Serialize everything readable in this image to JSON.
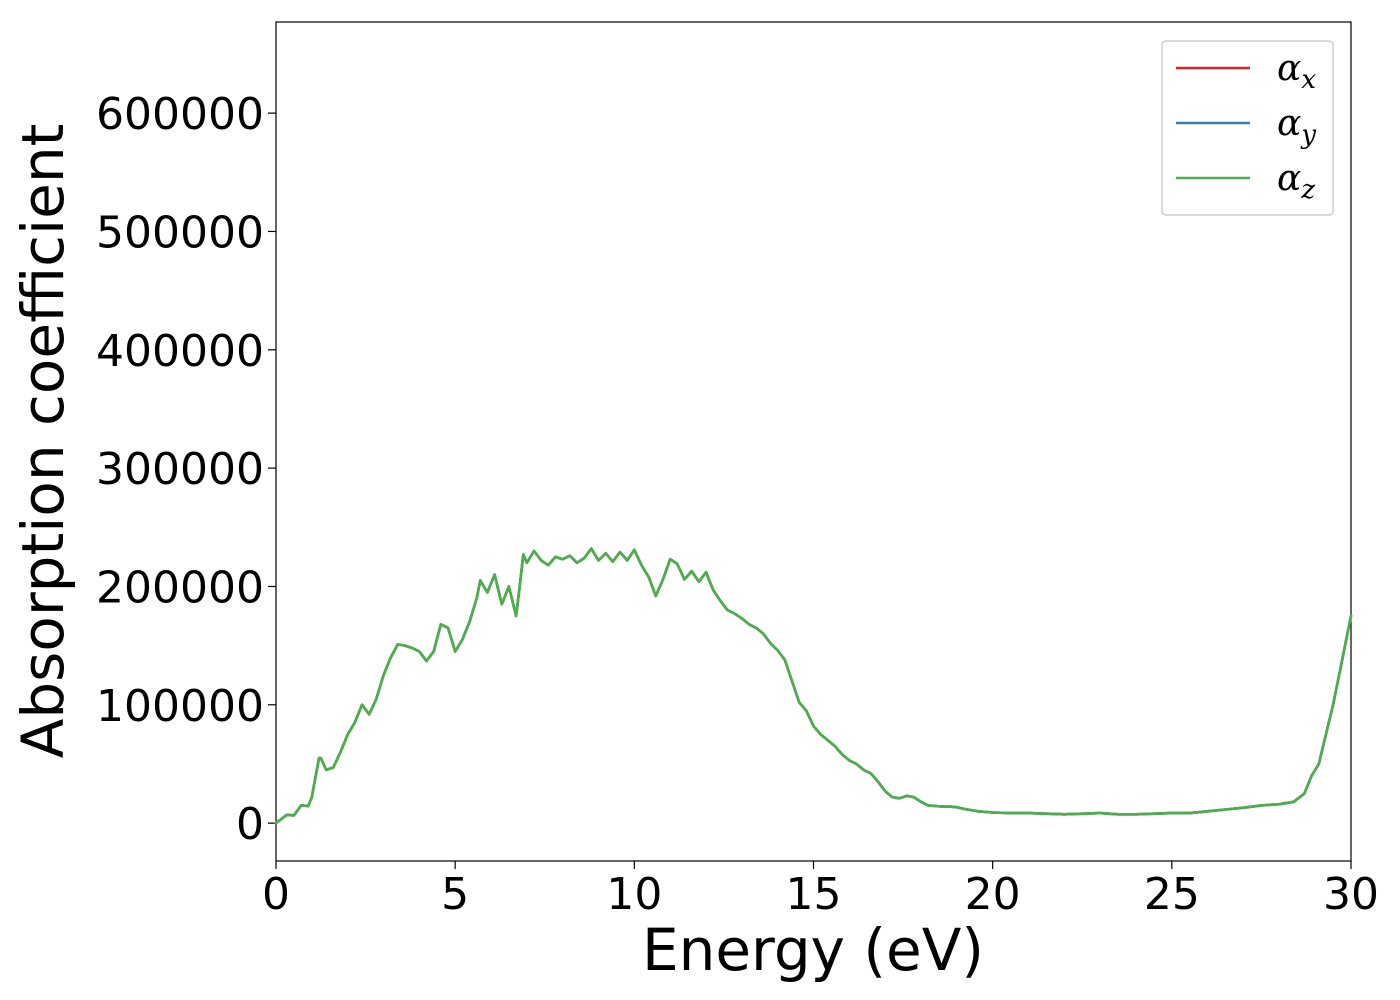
{
  "chart_data": {
    "type": "line",
    "xlabel": "Energy (eV)",
    "ylabel": "Absorption coefficient",
    "xlim": [
      0,
      30
    ],
    "ylim": [
      -32000,
      677000
    ],
    "x_ticks": [
      0,
      5,
      10,
      15,
      20,
      25,
      30
    ],
    "y_ticks": [
      0,
      100000,
      200000,
      300000,
      400000,
      500000,
      600000
    ],
    "x_tick_labels": [
      "0",
      "5",
      "10",
      "15",
      "20",
      "25",
      "30"
    ],
    "y_tick_labels": [
      "0",
      "100000",
      "200000",
      "300000",
      "400000",
      "500000",
      "600000"
    ],
    "grid": false,
    "legend_position": "top-right",
    "x": [
      0,
      0.3,
      0.5,
      0.7,
      0.9,
      1.0,
      1.2,
      1.25,
      1.4,
      1.6,
      1.8,
      2.0,
      2.2,
      2.4,
      2.6,
      2.8,
      3.0,
      3.2,
      3.4,
      3.6,
      3.8,
      4.0,
      4.2,
      4.4,
      4.6,
      4.8,
      5.0,
      5.2,
      5.4,
      5.6,
      5.7,
      5.9,
      6.1,
      6.3,
      6.5,
      6.7,
      6.8,
      6.9,
      7.0,
      7.2,
      7.4,
      7.6,
      7.8,
      8.0,
      8.2,
      8.4,
      8.6,
      8.8,
      9.0,
      9.2,
      9.4,
      9.6,
      9.8,
      10.0,
      10.2,
      10.4,
      10.6,
      10.8,
      11.0,
      11.2,
      11.4,
      11.6,
      11.8,
      12.0,
      12.2,
      12.4,
      12.6,
      12.8,
      13.0,
      13.2,
      13.4,
      13.6,
      13.8,
      14.0,
      14.2,
      14.4,
      14.6,
      14.8,
      15.0,
      15.2,
      15.4,
      15.6,
      15.8,
      16.0,
      16.2,
      16.4,
      16.6,
      16.8,
      17.0,
      17.2,
      17.4,
      17.6,
      17.8,
      18.0,
      18.2,
      18.4,
      18.6,
      18.8,
      19.0,
      19.2,
      19.4,
      19.6,
      19.8,
      20.0,
      20.5,
      21.0,
      21.5,
      22.0,
      22.5,
      23.0,
      23.5,
      24.0,
      24.5,
      25.0,
      25.5,
      26.0,
      26.5,
      27.0,
      27.5,
      28.0,
      28.4,
      28.7,
      28.9,
      29.1,
      29.3,
      29.5,
      29.7,
      29.9,
      30.0
    ],
    "series": [
      {
        "name": "α_x",
        "color": "#d62728",
        "values": [
          0,
          7000,
          6500,
          15000,
          14500,
          22000,
          55000,
          55000,
          45000,
          47000,
          60000,
          75000,
          85000,
          100000,
          92000,
          105000,
          125000,
          140000,
          151000,
          150000,
          148000,
          145000,
          137000,
          145000,
          168000,
          165000,
          145000,
          155000,
          170000,
          190000,
          205000,
          195000,
          210000,
          185000,
          200000,
          175000,
          200000,
          227000,
          220000,
          230000,
          222000,
          218000,
          225000,
          223000,
          226000,
          220000,
          224000,
          232000,
          222000,
          228000,
          221000,
          229000,
          222000,
          231000,
          218000,
          208000,
          192000,
          206000,
          223000,
          219000,
          206000,
          213000,
          204000,
          212000,
          197000,
          188000,
          180000,
          177000,
          173000,
          168000,
          165000,
          160000,
          152000,
          146000,
          138000,
          120000,
          102000,
          95000,
          82000,
          75000,
          70000,
          65000,
          58000,
          53000,
          50000,
          45000,
          42000,
          35000,
          27000,
          22000,
          21000,
          23000,
          22000,
          18000,
          15000,
          14500,
          14000,
          14000,
          13500,
          12000,
          11000,
          10000,
          9500,
          9000,
          8500,
          8500,
          8000,
          7500,
          8000,
          8500,
          7500,
          7500,
          8000,
          8500,
          8500,
          10000,
          11500,
          13000,
          15000,
          16000,
          18000,
          25000,
          40000,
          50000,
          75000,
          100000,
          130000,
          160000,
          175000
        ]
      },
      {
        "name": "α_y",
        "color": "#377eb8",
        "values": [
          0,
          7000,
          6500,
          15000,
          14500,
          22000,
          55000,
          55000,
          45000,
          47000,
          60000,
          75000,
          85000,
          100000,
          92000,
          105000,
          125000,
          140000,
          151000,
          150000,
          148000,
          145000,
          137000,
          145000,
          168000,
          165000,
          145000,
          155000,
          170000,
          190000,
          205000,
          195000,
          210000,
          185000,
          200000,
          175000,
          200000,
          227000,
          220000,
          230000,
          222000,
          218000,
          225000,
          223000,
          226000,
          220000,
          224000,
          232000,
          222000,
          228000,
          221000,
          229000,
          222000,
          231000,
          218000,
          208000,
          192000,
          206000,
          223000,
          219000,
          206000,
          213000,
          204000,
          212000,
          197000,
          188000,
          180000,
          177000,
          173000,
          168000,
          165000,
          160000,
          152000,
          146000,
          138000,
          120000,
          102000,
          95000,
          82000,
          75000,
          70000,
          65000,
          58000,
          53000,
          50000,
          45000,
          42000,
          35000,
          27000,
          22000,
          21000,
          23000,
          22000,
          18000,
          15000,
          14500,
          14000,
          14000,
          13500,
          12000,
          11000,
          10000,
          9500,
          9000,
          8500,
          8500,
          8000,
          7500,
          8000,
          8500,
          7500,
          7500,
          8000,
          8500,
          8500,
          10000,
          11500,
          13000,
          15000,
          16000,
          18000,
          25000,
          40000,
          50000,
          75000,
          100000,
          130000,
          160000,
          175000
        ]
      },
      {
        "name": "α_z",
        "color": "#4daf4a",
        "values": [
          0,
          7000,
          6500,
          15000,
          14500,
          22000,
          55000,
          55000,
          45000,
          47000,
          60000,
          75000,
          85000,
          100000,
          92000,
          105000,
          125000,
          140000,
          151000,
          150000,
          148000,
          145000,
          137000,
          145000,
          168000,
          165000,
          145000,
          155000,
          170000,
          190000,
          205000,
          195000,
          210000,
          185000,
          200000,
          175000,
          200000,
          227000,
          220000,
          230000,
          222000,
          218000,
          225000,
          223000,
          226000,
          220000,
          224000,
          232000,
          222000,
          228000,
          221000,
          229000,
          222000,
          231000,
          218000,
          208000,
          192000,
          206000,
          223000,
          219000,
          206000,
          213000,
          204000,
          212000,
          197000,
          188000,
          180000,
          177000,
          173000,
          168000,
          165000,
          160000,
          152000,
          146000,
          138000,
          120000,
          102000,
          95000,
          82000,
          75000,
          70000,
          65000,
          58000,
          53000,
          50000,
          45000,
          42000,
          35000,
          27000,
          22000,
          21000,
          23000,
          22000,
          18000,
          15000,
          14500,
          14000,
          14000,
          13500,
          12000,
          11000,
          10000,
          9500,
          9000,
          8500,
          8500,
          8000,
          7500,
          8000,
          8500,
          7500,
          7500,
          8000,
          8500,
          8500,
          10000,
          11500,
          13000,
          15000,
          16000,
          18000,
          25000,
          40000,
          50000,
          75000,
          100000,
          130000,
          160000,
          175000
        ]
      }
    ],
    "legend": [
      {
        "base": "α",
        "sub": "x"
      },
      {
        "base": "α",
        "sub": "y"
      },
      {
        "base": "α",
        "sub": "z"
      }
    ]
  }
}
